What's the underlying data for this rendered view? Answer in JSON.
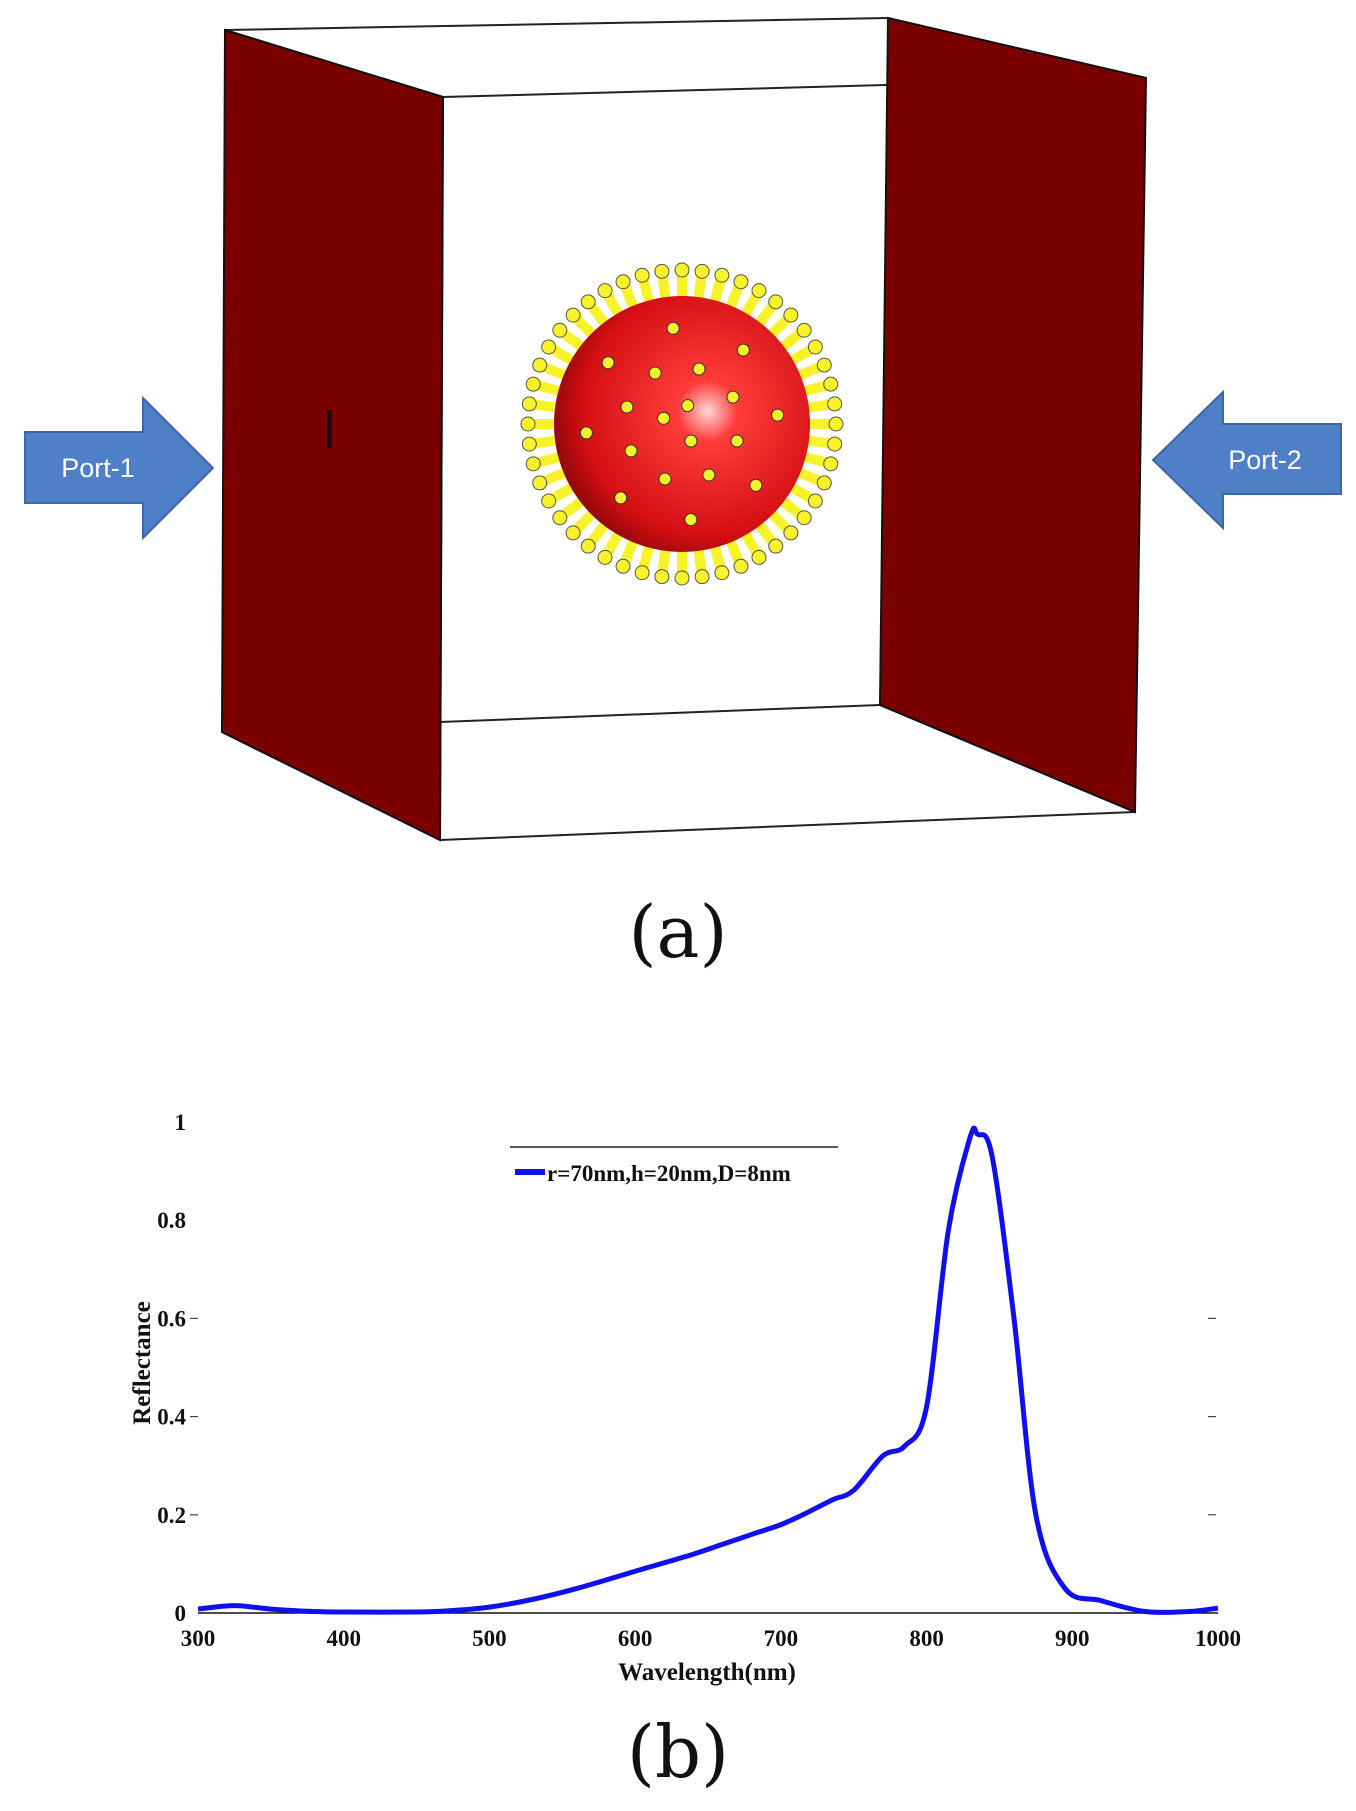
{
  "panel_a": {
    "caption": "(a)",
    "ports": [
      {
        "label": "Port-1"
      },
      {
        "label": "Port-2"
      }
    ],
    "colors": {
      "port_walls": "#7a0000",
      "sphere": "#e8141c",
      "spikes": "#f7f22a",
      "arrows": "#4f7fc6"
    }
  },
  "panel_b": {
    "caption": "(b)"
  },
  "chart_data": {
    "type": "line",
    "xlabel": "Wavelength(nm)",
    "ylabel": "Reflectance",
    "xlim": [
      300,
      1000
    ],
    "ylim": [
      0,
      1
    ],
    "xticks": [
      "300",
      "400",
      "500",
      "600",
      "700",
      "800",
      "900",
      "1000"
    ],
    "yticks": [
      "0",
      "0.2",
      "0.4",
      "0.6",
      "0.8",
      "1"
    ],
    "legend_position": "top-center",
    "series": [
      {
        "name": "r=70nm,h=20nm,D=8nm",
        "color": "#1010ee",
        "x": [
          300,
          325,
          350,
          380,
          400,
          450,
          470,
          500,
          530,
          560,
          600,
          640,
          660,
          680,
          700,
          715,
          735,
          750,
          770,
          785,
          800,
          815,
          830,
          835,
          845,
          860,
          875,
          895,
          920,
          950,
          980,
          1000
        ],
        "y": [
          0.008,
          0.015,
          0.008,
          0.003,
          0.002,
          0.002,
          0.004,
          0.012,
          0.028,
          0.05,
          0.085,
          0.12,
          0.14,
          0.16,
          0.18,
          0.2,
          0.23,
          0.25,
          0.32,
          0.34,
          0.42,
          0.78,
          0.97,
          0.975,
          0.93,
          0.6,
          0.2,
          0.05,
          0.025,
          0.003,
          0.003,
          0.01
        ]
      }
    ]
  }
}
